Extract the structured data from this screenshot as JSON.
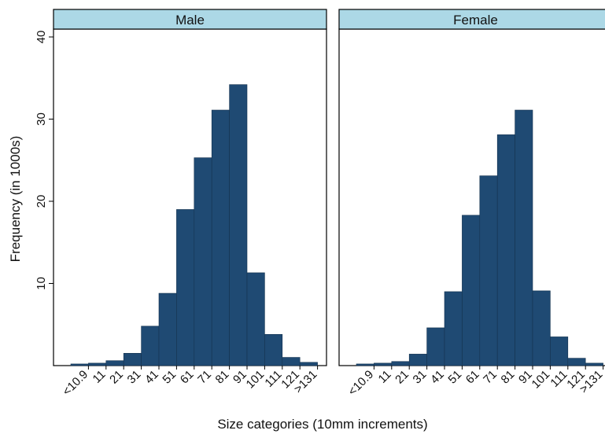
{
  "chart_data": {
    "type": "bar",
    "xlabel": "Size categories (10mm increments)",
    "ylabel": "Frequency (in 1000s)",
    "ylim": [
      0,
      40
    ],
    "yticks": [
      10,
      20,
      30,
      40
    ],
    "grid": false,
    "bar_color": "#1f4a73",
    "strip_color": "#acd8e6",
    "categories": [
      "<10.9",
      "11",
      "21",
      "31",
      "41",
      "51",
      "61",
      "71",
      "81",
      "91",
      "101",
      "111",
      "121",
      ">131"
    ],
    "panels": [
      {
        "title": "Male",
        "values": [
          0.2,
          0.3,
          0.6,
          1.5,
          4.8,
          8.8,
          19.0,
          25.3,
          31.1,
          34.2,
          11.3,
          3.8,
          1.0,
          0.4
        ]
      },
      {
        "title": "Female",
        "values": [
          0.2,
          0.3,
          0.5,
          1.4,
          4.6,
          9.0,
          18.3,
          23.1,
          28.1,
          31.1,
          9.1,
          3.5,
          0.9,
          0.3
        ]
      }
    ]
  }
}
